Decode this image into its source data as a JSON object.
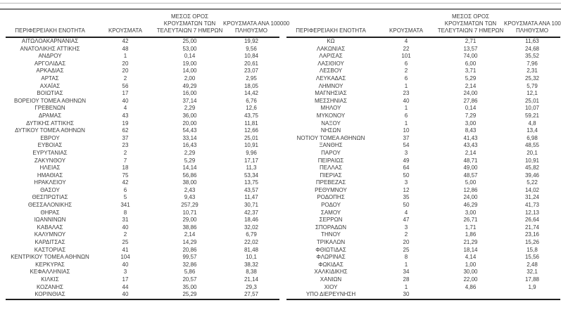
{
  "rules": {
    "light_color": "#b8b8b8",
    "dark_color": "#7a7a7a"
  },
  "columns": [
    {
      "id": "region",
      "label_lines": [
        "ΠΕΡΙΦΕΡΕΙΑΚΗ ΕΝΟΤΗΤΑ"
      ]
    },
    {
      "id": "cases",
      "label_lines": [
        "ΚΡΟΥΣΜΑΤΑ"
      ]
    },
    {
      "id": "avg7",
      "label_lines": [
        "ΜΕΣΟΣ ΟΡΟΣ",
        "ΚΡΟΥΣΜΑΤΩΝ ΤΩΝ",
        "ΤΕΛΕΥΤΑΙΩΝ 7 ΗΜΕΡΩΝ"
      ]
    },
    {
      "id": "per100k",
      "label_lines": [
        "ΚΡΟΥΣΜΑΤΑ ΑΝΑ 100000",
        "ΠΛΗΘΥΣΜΟ"
      ]
    }
  ],
  "tables": [
    {
      "rows": [
        [
          "ΑΙΤΩΛΟΑΚΑΡΝΑΝΙΑΣ",
          "42",
          "25,00",
          "19,92"
        ],
        [
          "ΑΝΑΤΟΛΙΚΗΣ ΑΤΤΙΚΗΣ",
          "48",
          "53,00",
          "9,56"
        ],
        [
          "ΑΝΔΡΟΥ",
          "1",
          "0,14",
          "10,84"
        ],
        [
          "ΑΡΓΟΛΙΔΑΣ",
          "20",
          "19,00",
          "20,61"
        ],
        [
          "ΑΡΚΑΔΙΑΣ",
          "20",
          "14,00",
          "23,07"
        ],
        [
          "ΑΡΤΑΣ",
          "2",
          "2,00",
          "2,95"
        ],
        [
          "ΑΧΑΪΑΣ",
          "56",
          "49,29",
          "18,05"
        ],
        [
          "ΒΟΙΩΤΙΑΣ",
          "17",
          "16,00",
          "14,42"
        ],
        [
          "ΒΟΡΕΙΟΥ ΤΟΜΕΑ ΑΘΗΝΩΝ",
          "40",
          "37,14",
          "6,76"
        ],
        [
          "ΓΡΕΒΕΝΩΝ",
          "4",
          "2,29",
          "12,6"
        ],
        [
          "ΔΡΑΜΑΣ",
          "43",
          "36,00",
          "43,75"
        ],
        [
          "ΔΥΤΙΚΗΣ ΑΤΤΙΚΗΣ",
          "19",
          "20,00",
          "11,81"
        ],
        [
          "ΔΥΤΙΚΟΥ ΤΟΜΕΑ ΑΘΗΝΩΝ",
          "62",
          "54,43",
          "12,66"
        ],
        [
          "ΕΒΡΟΥ",
          "37",
          "33,14",
          "25,01"
        ],
        [
          "ΕΥΒΟΙΑΣ",
          "23",
          "16,43",
          "10,91"
        ],
        [
          "ΕΥΡΥΤΑΝΙΑΣ",
          "2",
          "2,29",
          "9,96"
        ],
        [
          "ΖΑΚΥΝΘΟΥ",
          "7",
          "5,29",
          "17,17"
        ],
        [
          "ΗΛΕΙΑΣ",
          "18",
          "14,14",
          "11,3"
        ],
        [
          "ΗΜΑΘΙΑΣ",
          "75",
          "56,86",
          "53,34"
        ],
        [
          "ΗΡΑΚΛΕΙΟΥ",
          "42",
          "38,00",
          "13,75"
        ],
        [
          "ΘΑΣΟΥ",
          "6",
          "2,43",
          "43,57"
        ],
        [
          "ΘΕΣΠΡΩΤΙΑΣ",
          "5",
          "9,43",
          "11,47"
        ],
        [
          "ΘΕΣΣΑΛΟΝΙΚΗΣ",
          "341",
          "257,29",
          "30,71"
        ],
        [
          "ΘΗΡΑΣ",
          "8",
          "10,71",
          "42,37"
        ],
        [
          "ΙΩΑΝΝΙΝΩΝ",
          "31",
          "29,00",
          "18,46"
        ],
        [
          "ΚΑΒΑΛΑΣ",
          "40",
          "38,86",
          "32,02"
        ],
        [
          "ΚΑΛΥΜΝΟΥ",
          "2",
          "2,14",
          "6,79"
        ],
        [
          "ΚΑΡΔΙΤΣΑΣ",
          "25",
          "14,29",
          "22,02"
        ],
        [
          "ΚΑΣΤΟΡΙΑΣ",
          "41",
          "20,86",
          "81,48"
        ],
        [
          "ΚΕΝΤΡΙΚΟΥ ΤΟΜΕΑ ΑΘΗΝΩΝ",
          "104",
          "99,57",
          "10,1"
        ],
        [
          "ΚΕΡΚΥΡΑΣ",
          "40",
          "32,86",
          "38,32"
        ],
        [
          "ΚΕΦΑΛΛΗΝΙΑΣ",
          "3",
          "5,86",
          "8,38"
        ],
        [
          "ΚΙΛΚΙΣ",
          "17",
          "20,57",
          "21,14"
        ],
        [
          "ΚΟΖΑΝΗΣ",
          "44",
          "35,00",
          "29,3"
        ],
        [
          "ΚΟΡΙΝΘΙΑΣ",
          "40",
          "25,29",
          "27,57"
        ]
      ]
    },
    {
      "rows": [
        [
          "ΚΩ",
          "4",
          "2,71",
          "11,63"
        ],
        [
          "ΛΑΚΩΝΙΑΣ",
          "22",
          "13,57",
          "24,68"
        ],
        [
          "ΛΑΡΙΣΑΣ",
          "101",
          "74,00",
          "35,52"
        ],
        [
          "ΛΑΣΙΘΙΟΥ",
          "6",
          "6,00",
          "7,96"
        ],
        [
          "ΛΕΣΒΟΥ",
          "2",
          "3,71",
          "2,31"
        ],
        [
          "ΛΕΥΚΑΔΑΣ",
          "6",
          "5,29",
          "25,32"
        ],
        [
          "ΛΗΜΝΟΥ",
          "1",
          "2,14",
          "5,79"
        ],
        [
          "ΜΑΓΝΗΣΙΑΣ",
          "23",
          "24,00",
          "12,1"
        ],
        [
          "ΜΕΣΣΗΝΙΑΣ",
          "40",
          "27,86",
          "25,01"
        ],
        [
          "ΜΗΛΟΥ",
          "1",
          "0,14",
          "10,07"
        ],
        [
          "ΜΥΚΟΝΟΥ",
          "6",
          "7,29",
          "59,21"
        ],
        [
          "ΝΑΞΟΥ",
          "1",
          "3,00",
          "4,8"
        ],
        [
          "ΝΗΣΩΝ",
          "10",
          "8,43",
          "13,4"
        ],
        [
          "ΝΟΤΙΟΥ ΤΟΜΕΑ ΑΘΗΝΩΝ",
          "37",
          "41,43",
          "6,98"
        ],
        [
          "ΞΑΝΘΗΣ",
          "54",
          "43,43",
          "48,55"
        ],
        [
          "ΠΑΡΟΥ",
          "3",
          "2,14",
          "20,1"
        ],
        [
          "ΠΕΙΡΑΙΩΣ",
          "49",
          "48,71",
          "10,91"
        ],
        [
          "ΠΕΛΛΑΣ",
          "64",
          "49,00",
          "45,82"
        ],
        [
          "ΠΙΕΡΙΑΣ",
          "50",
          "48,57",
          "39,46"
        ],
        [
          "ΠΡΕΒΕΖΑΣ",
          "3",
          "5,00",
          "5,22"
        ],
        [
          "ΡΕΘΥΜΝΟΥ",
          "12",
          "12,86",
          "14,02"
        ],
        [
          "ΡΟΔΟΠΗΣ",
          "35",
          "24,00",
          "31,24"
        ],
        [
          "ΡΟΔΟΥ",
          "50",
          "46,29",
          "41,73"
        ],
        [
          "ΣΑΜΟΥ",
          "4",
          "3,00",
          "12,13"
        ],
        [
          "ΣΕΡΡΩΝ",
          "47",
          "26,71",
          "26,64"
        ],
        [
          "ΣΠΟΡΑΔΩΝ",
          "3",
          "1,71",
          "21,74"
        ],
        [
          "ΤΗΝΟΥ",
          "2",
          "1,86",
          "23,16"
        ],
        [
          "ΤΡΙΚΑΛΩΝ",
          "20",
          "21,29",
          "15,26"
        ],
        [
          "ΦΘΙΩΤΙΔΑΣ",
          "25",
          "18,14",
          "15,8"
        ],
        [
          "ΦΛΩΡΙΝΑΣ",
          "8",
          "4,14",
          "15,56"
        ],
        [
          "ΦΩΚΙΔΑΣ",
          "1",
          "1,00",
          "2,48"
        ],
        [
          "ΧΑΛΚΙΔΙΚΗΣ",
          "34",
          "30,00",
          "32,1"
        ],
        [
          "ΧΑΝΙΩΝ",
          "28",
          "22,00",
          "17,88"
        ],
        [
          "ΧΙΟΥ",
          "1",
          "4,86",
          "1,9"
        ],
        [
          "ΥΠΟ ΔΙΕΡΕΥΝΗΣΗ",
          "30",
          "",
          ""
        ]
      ]
    }
  ]
}
